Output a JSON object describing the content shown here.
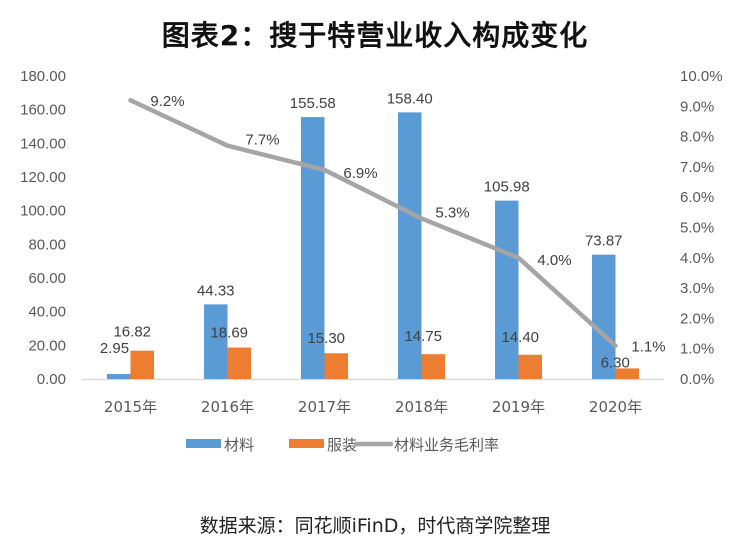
{
  "title": "图表2：搜于特营业收入构成变化",
  "source": "数据来源：同花顺iFinD，时代商学院整理",
  "chart_data": {
    "type": "bar",
    "title": "图表2：搜于特营业收入构成变化",
    "categories": [
      "2015年",
      "2016年",
      "2017年",
      "2018年",
      "2019年",
      "2020年"
    ],
    "series": [
      {
        "name": "材料",
        "type": "bar",
        "axis": "left",
        "color": "#5B9BD5",
        "values": [
          2.95,
          44.33,
          155.58,
          158.4,
          105.98,
          73.87
        ],
        "labels": [
          "2.95",
          "44.33",
          "155.58",
          "158.40",
          "105.98",
          "73.87"
        ]
      },
      {
        "name": "服装",
        "type": "bar",
        "axis": "left",
        "color": "#ED7D31",
        "values": [
          16.82,
          18.69,
          15.3,
          14.75,
          14.4,
          6.3
        ],
        "labels": [
          "16.82",
          "18.69",
          "15.30",
          "14.75",
          "14.40",
          "6.30"
        ]
      },
      {
        "name": "材料业务毛利率",
        "type": "line",
        "axis": "right",
        "color": "#A5A5A5",
        "values": [
          9.2,
          7.7,
          6.9,
          5.3,
          4.0,
          1.1
        ],
        "labels": [
          "9.2%",
          "7.7%",
          "6.9%",
          "5.3%",
          "4.0%",
          "1.1%"
        ]
      }
    ],
    "y_left": {
      "range": [
        0,
        180
      ],
      "ticks": [
        "0.00",
        "20.00",
        "40.00",
        "60.00",
        "80.00",
        "100.00",
        "120.00",
        "140.00",
        "160.00",
        "180.00"
      ]
    },
    "y_right": {
      "range": [
        0,
        10
      ],
      "ticks": [
        "0.0%",
        "1.0%",
        "2.0%",
        "3.0%",
        "4.0%",
        "5.0%",
        "6.0%",
        "7.0%",
        "8.0%",
        "9.0%",
        "10.0%"
      ]
    },
    "grid": false,
    "legend": "bottom"
  }
}
